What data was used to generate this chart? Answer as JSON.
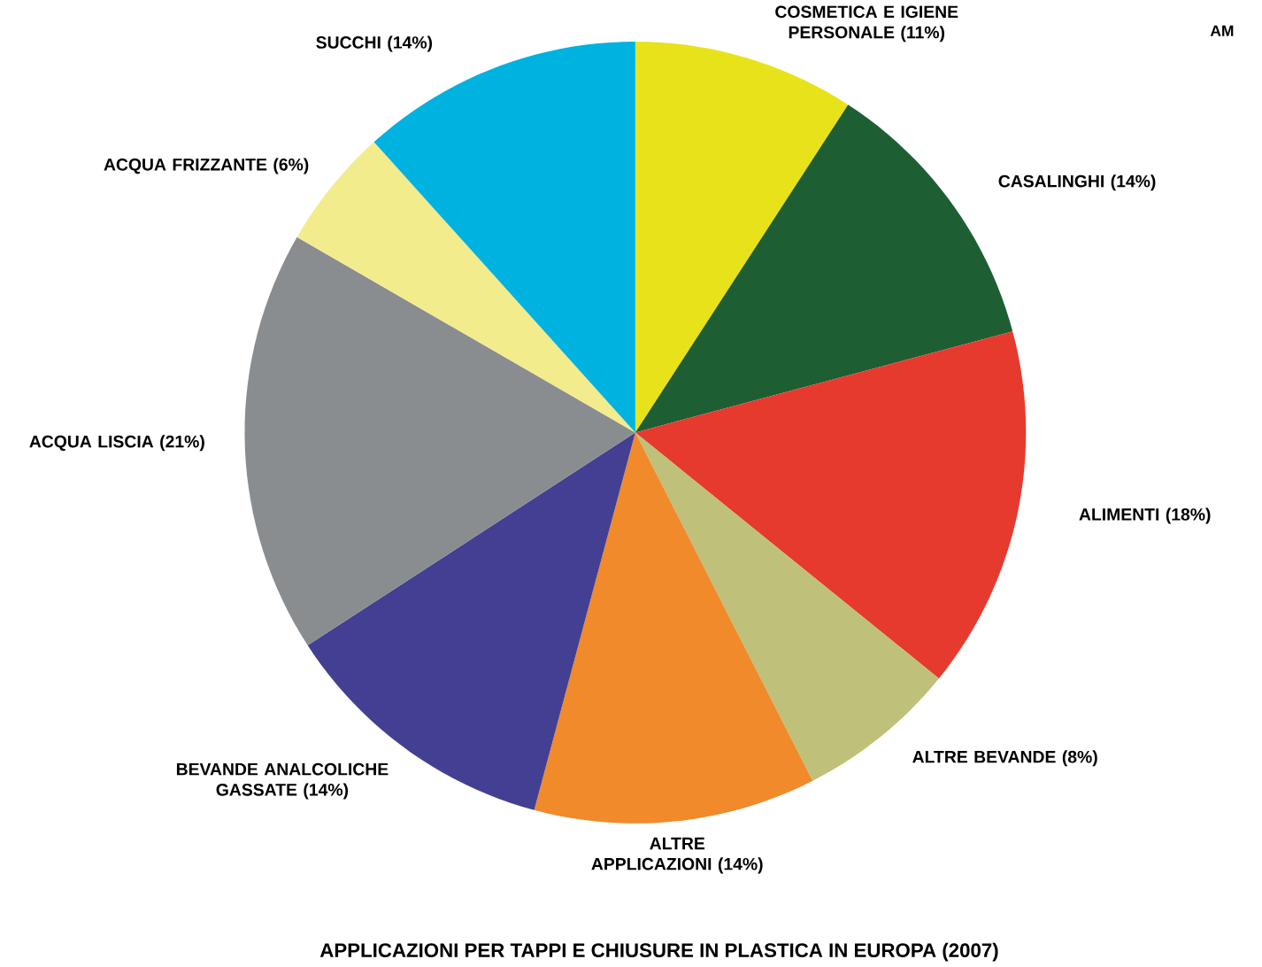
{
  "chart_data": {
    "type": "pie",
    "title": "APPLICAZIONI PER TAPPI E CHIUSURE IN PLASTICA IN EUROPA (2007)",
    "categories": [
      "COSMETICA E IGIENE PERSONALE",
      "CASALINGHI",
      "ALIMENTI",
      "ALTRE BEVANDE",
      "ALTRE APPLICAZIONI",
      "BEVANDE ANALCOLICHE GASSATE",
      "ACQUA LISCIA",
      "ACQUA FRIZZANTE",
      "SUCCHI"
    ],
    "values": [
      11,
      14,
      18,
      8,
      14,
      14,
      21,
      6,
      14
    ],
    "value_labels": [
      "(11%)",
      "(14%)",
      "(18%)",
      "(8%)",
      "(14%)",
      "(14%)",
      "(21%)",
      "(6%)",
      "(14%)"
    ],
    "colors": [
      "#e8e21a",
      "#1e5e33",
      "#e63a2e",
      "#bfc07a",
      "#f08a2a",
      "#433f93",
      "#8a8d90",
      "#f2ec8c",
      "#00b2e0"
    ],
    "annotations": [
      "AM"
    ]
  }
}
